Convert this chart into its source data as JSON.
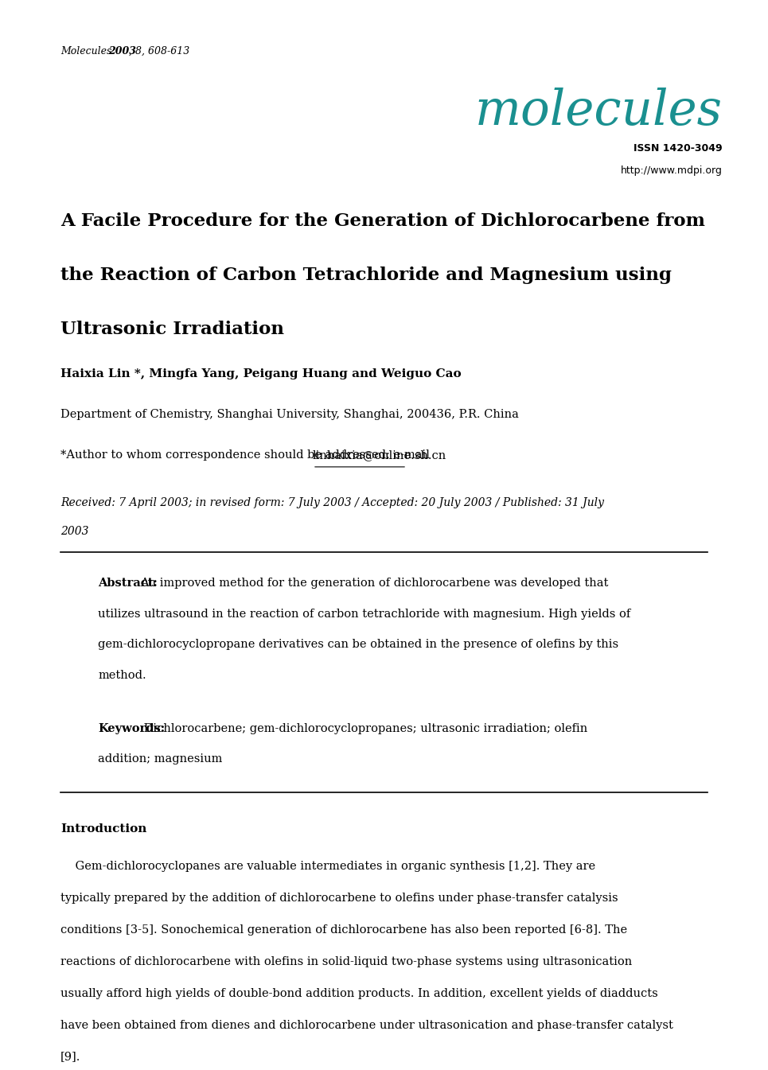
{
  "background_color": "#ffffff",
  "journal_name_color": "#1a9090",
  "issn": "ISSN 1420-3049",
  "url": "http://www.mdpi.org",
  "title_line1": "A Facile Procedure for the Generation of Dichlorocarbene from",
  "title_line2": "the Reaction of Carbon Tetrachloride and Magnesium using",
  "title_line3": "Ultrasonic Irradiation",
  "authors": "Haixia Lin *, Mingfa Yang, Peigang Huang and Weiguo Cao",
  "affiliation": "Department of Chemistry, Shanghai University, Shanghai, 200436, P.R. China",
  "corr_prefix": "*Author to whom correspondence should be addressed: e-mail ",
  "corr_email": "linhaixia@online.sh.cn",
  "received_line1": "Received: 7 April 2003; in revised form: 7 July 2003 / Accepted: 20 July 2003 / Published: 31 July",
  "received_line2": "2003",
  "abstract_label": "Abstract:",
  "abstract_lines": [
    "An improved method for the generation of dichlorocarbene was developed that",
    "utilizes ultrasound in the reaction of carbon tetrachloride with magnesium. High yields of",
    "gem-dichlorocyclopropane derivatives can be obtained in the presence of olefins by this",
    "method."
  ],
  "keywords_label": "Keywords:",
  "keywords_line1": " Dichlorocarbene; gem-dichlorocyclopropanes; ultrasonic irradiation; olefin",
  "keywords_line2": "addition; magnesium",
  "intro_heading": "Introduction",
  "intro_lines": [
    "    Gem-dichlorocyclopanes are valuable intermediates in organic synthesis [1,2]. They are",
    "typically prepared by the addition of dichlorocarbene to olefins under phase-transfer catalysis",
    "conditions [3-5]. Sonochemical generation of dichlorocarbene has also been reported [6-8]. The",
    "reactions of dichlorocarbene with olefins in solid-liquid two-phase systems using ultrasonication",
    "usually afford high yields of double-bond addition products. In addition, excellent yields of diadducts",
    "have been obtained from dienes and dichlorocarbene under ultrasonication and phase-transfer catalyst",
    "[9]."
  ]
}
